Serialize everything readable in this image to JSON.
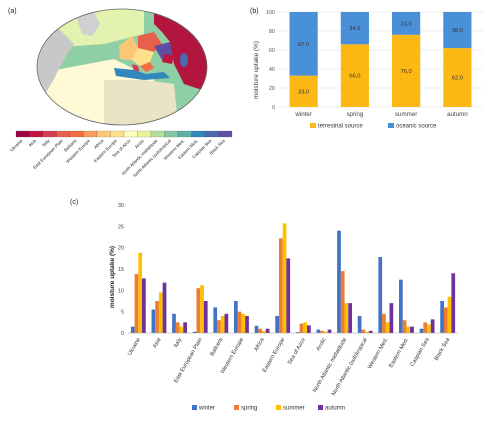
{
  "panels": {
    "a": "(a)",
    "b": "(b)",
    "c": "(c)"
  },
  "map": {
    "legend_categories": [
      "Ukraine",
      "Asia",
      "Italy",
      "East European Plain",
      "Balkans",
      "Western Europe",
      "Africa",
      "Eastern Europe",
      "Sea of Azov",
      "Arctic",
      "North Atlantic midlatitude",
      "North Atlantic (sub)tropical",
      "Western Med.",
      "Eastern Med.",
      "Caspian Sea",
      "Black Sea"
    ],
    "legend_colors": [
      "#9e0142",
      "#c2143e",
      "#d53e4f",
      "#e8604a",
      "#f46d43",
      "#fc9c5a",
      "#fdc776",
      "#fee08b",
      "#ffffbf",
      "#e6f598",
      "#b4df9b",
      "#82c9a3",
      "#5bb0a8",
      "#3288bd",
      "#4a6bb0",
      "#5e4fa2"
    ]
  },
  "chart_data": [
    {
      "type": "bar",
      "stacked": true,
      "categories": [
        "winter",
        "spring",
        "summer",
        "autumn"
      ],
      "series": [
        {
          "name": "terrestrial source",
          "values": [
            33.0,
            66.0,
            76.0,
            62.0
          ],
          "color": "#fdb913"
        },
        {
          "name": "oceanic source",
          "values": [
            67.0,
            34.0,
            24.0,
            38.0
          ],
          "color": "#4a90d9"
        }
      ],
      "value_labels": {
        "terrestrial source": [
          "33,0",
          "66,0",
          "76,0",
          "62,0"
        ],
        "oceanic source": [
          "67,0",
          "34,0",
          "24,0",
          "38,0"
        ]
      },
      "ylabel": "moisture uptake (%)",
      "ylim": [
        0,
        100
      ],
      "yticks": [
        0,
        20,
        40,
        60,
        80,
        100
      ],
      "legend_position": "bottom",
      "grid": true
    },
    {
      "type": "bar",
      "categories": [
        "Ukraine",
        "Asia",
        "Italy",
        "East European Plain",
        "Balkans",
        "Western Europe",
        "Africa",
        "Eastern Europe",
        "Sea of Azov",
        "Arctic",
        "North Atlantic midlatitude",
        "North Atlantic (sub)tropical",
        "Western Med.",
        "Eastern Med.",
        "Caspian Sea",
        "Black Sea"
      ],
      "series": [
        {
          "name": "winter",
          "color": "#4472c4",
          "values": [
            1.5,
            5.5,
            4.5,
            0.3,
            6.0,
            7.5,
            1.7,
            4.0,
            0.2,
            0.8,
            24.0,
            4.0,
            17.8,
            12.5,
            1.0,
            7.5
          ]
        },
        {
          "name": "spring",
          "color": "#ed7d31",
          "values": [
            13.8,
            7.5,
            2.5,
            10.5,
            3.0,
            5.0,
            1.0,
            22.2,
            2.2,
            0.5,
            14.5,
            0.8,
            4.5,
            3.0,
            2.5,
            6.0
          ]
        },
        {
          "name": "summer",
          "color": "#ffc000",
          "values": [
            18.8,
            9.5,
            1.5,
            11.2,
            4.0,
            4.5,
            0.5,
            25.7,
            2.5,
            0.3,
            7.0,
            0.3,
            2.5,
            1.5,
            2.0,
            8.5
          ]
        },
        {
          "name": "autumn",
          "color": "#7030a0",
          "values": [
            12.8,
            11.8,
            2.5,
            7.5,
            4.5,
            4.0,
            1.0,
            17.5,
            1.8,
            0.8,
            7.0,
            0.5,
            7.0,
            1.5,
            3.2,
            14.0
          ]
        }
      ],
      "ylabel": "moisture uptake (%)",
      "ylim": [
        0,
        30
      ],
      "yticks": [
        0,
        5,
        10,
        15,
        20,
        25,
        30
      ],
      "legend_position": "bottom",
      "grid": false
    }
  ]
}
